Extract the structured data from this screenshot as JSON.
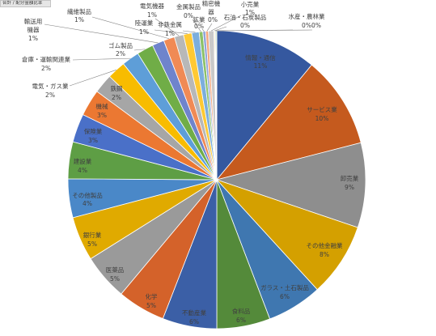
{
  "field_button": {
    "label": "合計 / 配分金額比率"
  },
  "chart_data": {
    "type": "pie",
    "slices": [
      {
        "name": "情報・通信",
        "value": 11.0,
        "label": "11%",
        "color": "#35589F"
      },
      {
        "name": "サービス業",
        "value": 10.0,
        "label": "10%",
        "color": "#C55A1E"
      },
      {
        "name": "卸売業",
        "value": 9.2,
        "label": "9%",
        "color": "#8E8E8E"
      },
      {
        "name": "その他金融業",
        "value": 8.0,
        "label": "8%",
        "color": "#D4A000"
      },
      {
        "name": "ガラス・土石製品",
        "value": 6.0,
        "label": "6%",
        "color": "#3F77B0"
      },
      {
        "name": "食料品",
        "value": 5.8,
        "label": "6%",
        "color": "#548A3A"
      },
      {
        "name": "不動産業",
        "value": 5.9,
        "label": "6%",
        "color": "#3B5FA6"
      },
      {
        "name": "化学",
        "value": 5.2,
        "label": "5%",
        "color": "#D4622A"
      },
      {
        "name": "医薬品",
        "value": 5.0,
        "label": "5%",
        "color": "#9A9A9A"
      },
      {
        "name": "銀行業",
        "value": 4.8,
        "label": "5%",
        "color": "#E0AA00"
      },
      {
        "name": "その他製品",
        "value": 4.2,
        "label": "4%",
        "color": "#4A88C8"
      },
      {
        "name": "建設業",
        "value": 4.0,
        "label": "4%",
        "color": "#5E9E45"
      },
      {
        "name": "保険業",
        "value": 3.1,
        "label": "3%",
        "color": "#4A70C8"
      },
      {
        "name": "機械",
        "value": 2.9,
        "label": "3%",
        "color": "#EB7832"
      },
      {
        "name": "鉄鋼",
        "value": 2.1,
        "label": "2%",
        "color": "#A6A6A6"
      },
      {
        "name": "電気・ガス業",
        "value": 2.0,
        "label": "2%",
        "color": "#F8BC00"
      },
      {
        "name": "倉庫・運輸関連業",
        "value": 1.9,
        "label": "2%",
        "color": "#5E9ED8"
      },
      {
        "name": "ゴム製品",
        "value": 1.8,
        "label": "2%",
        "color": "#70AD47"
      },
      {
        "name": "輸送用機器",
        "value": 1.3,
        "label": "1%",
        "color": "#6F84CC"
      },
      {
        "name": "繊維製品",
        "value": 1.2,
        "label": "1%",
        "color": "#F08A55"
      },
      {
        "name": "電気機器",
        "value": 1.0,
        "label": "1%",
        "color": "#B8B8B8"
      },
      {
        "name": "陸運業",
        "value": 0.9,
        "label": "1%",
        "color": "#FFC933"
      },
      {
        "name": "非鉄金属",
        "value": 0.8,
        "label": "1%",
        "color": "#7CAEDD"
      },
      {
        "name": "金属製品",
        "value": 0.4,
        "label": "0%",
        "color": "#8CC168"
      },
      {
        "name": "鉱業",
        "value": 0.3,
        "label": "0%",
        "color": "#8FA3DA"
      },
      {
        "name": "精密機器",
        "value": 0.3,
        "label": "0%",
        "color": "#F4A77E"
      },
      {
        "name": "小売業",
        "value": 0.6,
        "label": "1%",
        "color": "#C9C9C9"
      },
      {
        "name": "石油・石炭製品",
        "value": 0.1,
        "label": "0%",
        "color": "#FFD966"
      },
      {
        "name": "水産・農林業",
        "value": 0.1,
        "label": "0%",
        "color": "#9DC3E6"
      },
      {
        "value": 0.1,
        "label": "0%",
        "color": "#A9D08E"
      }
    ]
  }
}
